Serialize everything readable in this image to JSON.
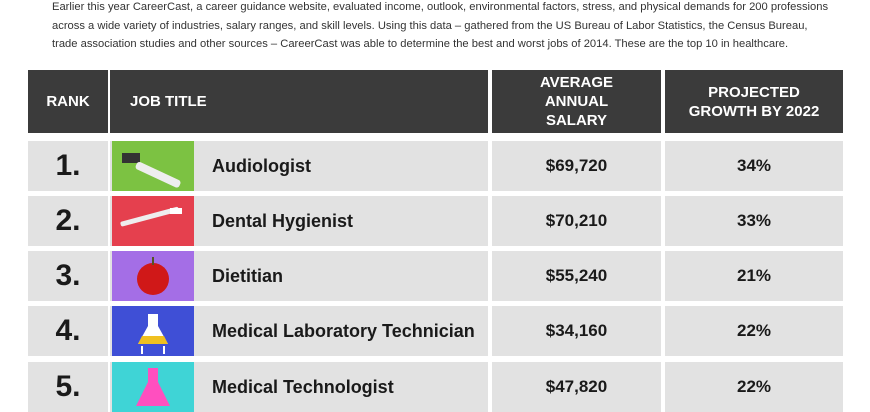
{
  "intro": {
    "lines": [
      "Earlier this year CareerCast, a career guidance website, evaluated income, outlook, environmental factors, stress, and physical demands for 200 professions",
      "across a wide variety of industries, salary ranges, and skill levels. Using this data – gathered from the US Bureau of Labor Statistics, the Census Bureau,",
      "trade association studies and other sources – CareerCast was able to determine the best and worst jobs of 2014. These are the top 10 in healthcare."
    ]
  },
  "table": {
    "header": [
      "RANK",
      "JOB TITLE",
      "AVERAGE ANNUAL SALARY",
      "PROJECTED GROWTH BY 2022"
    ],
    "rows": [
      [
        "1.",
        "Audiologist",
        "$69,720",
        "34%"
      ],
      [
        "2.",
        "Dental Hygienist",
        "$70,210",
        "33%"
      ],
      [
        "3.",
        "Dietitian",
        "$55,240",
        "21%"
      ],
      [
        "4.",
        "Medical Laboratory Technician",
        "$34,160",
        "22%"
      ],
      [
        "5.",
        "Medical Technologist",
        "$47,820",
        "22%"
      ]
    ]
  }
}
